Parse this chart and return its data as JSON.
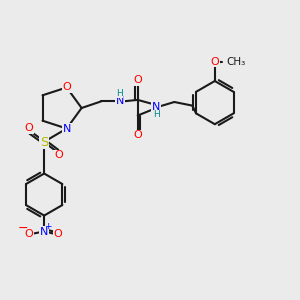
{
  "bg_color": "#ebebeb",
  "bond_color": "#1a1a1a",
  "bond_width": 1.5,
  "atom_colors": {
    "O": "#ff0000",
    "N": "#0000ff",
    "S": "#b8b800",
    "H": "#008b8b",
    "C": "#1a1a1a"
  },
  "font_size_atom": 8.0
}
